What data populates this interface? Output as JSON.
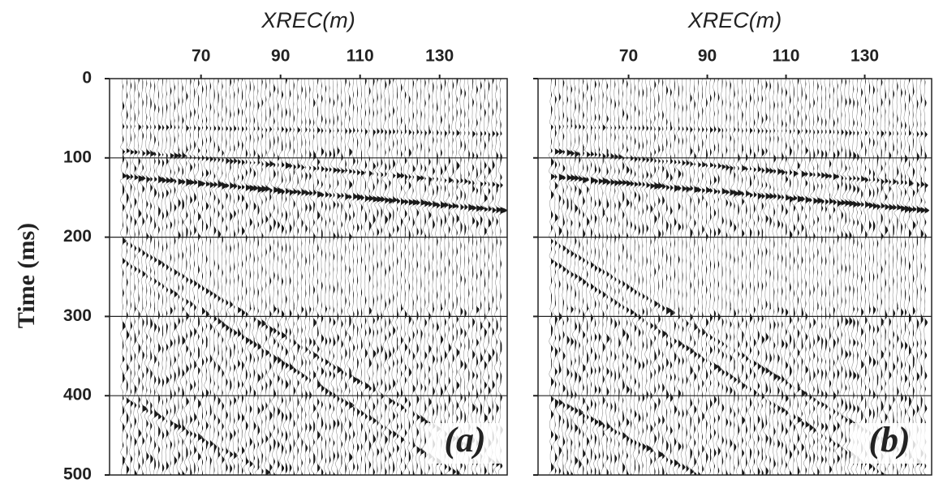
{
  "chart_data": [
    {
      "type": "seismic",
      "x_label": "XREC(m)",
      "y_label": "Time (ms)",
      "annotation": "(a)",
      "xlim": [
        47,
        147
      ],
      "xticks": [
        70,
        90,
        110,
        130
      ],
      "ylim": [
        0,
        500
      ],
      "yticks": [
        0,
        100,
        200,
        300,
        400,
        500
      ],
      "grid": true
    },
    {
      "type": "seismic",
      "x_label": "XREC(m)",
      "annotation": "(b)",
      "xlim": [
        47,
        147
      ],
      "xticks": [
        70,
        90,
        110,
        130
      ],
      "ylim": [
        0,
        500
      ],
      "yticks": [
        0,
        100,
        200,
        300,
        400,
        500
      ],
      "grid": true
    }
  ]
}
